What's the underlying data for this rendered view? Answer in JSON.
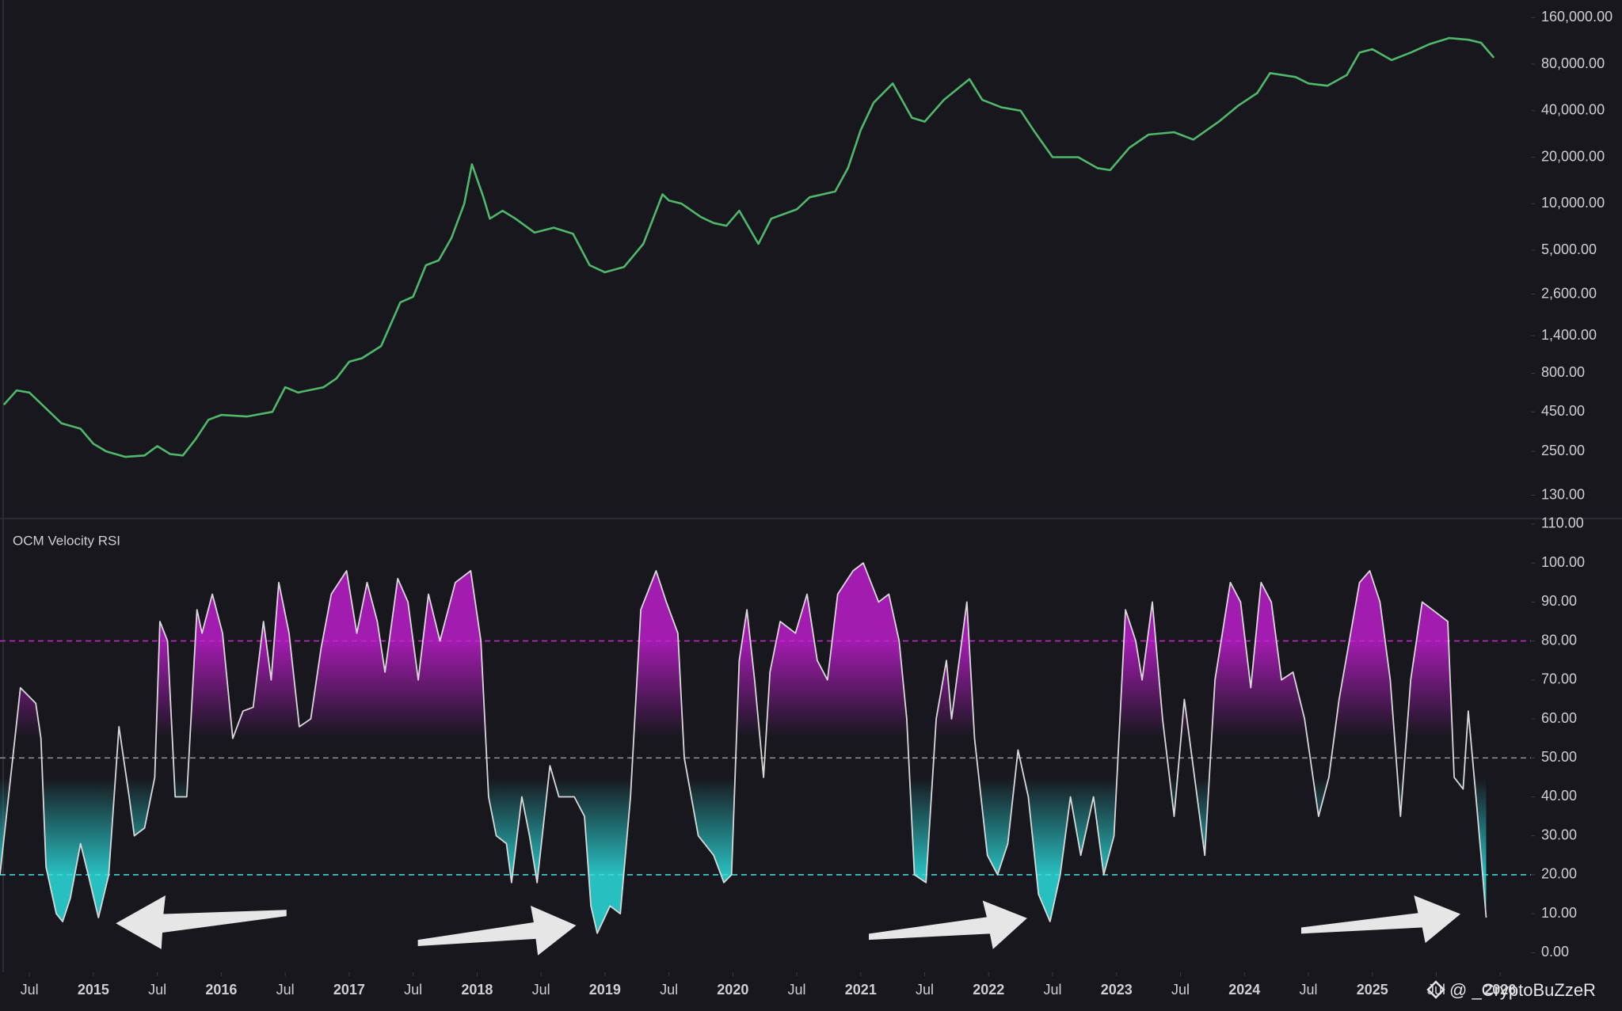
{
  "chart_data": [
    {
      "type": "line",
      "log_scale": true,
      "color": "#4fb86a",
      "xlim": [
        2014.27,
        2026.24
      ],
      "ylim": [
        94,
        208000
      ],
      "yticks": [
        {
          "value": 130,
          "label": "130.00"
        },
        {
          "value": 250,
          "label": "250.00"
        },
        {
          "value": 450,
          "label": "450.00"
        },
        {
          "value": 800,
          "label": "800.00"
        },
        {
          "value": 1400,
          "label": "1,400.00"
        },
        {
          "value": 2600,
          "label": "2,600.00"
        },
        {
          "value": 5000,
          "label": "5,000.00"
        },
        {
          "value": 10000,
          "label": "10,000.00"
        },
        {
          "value": 20000,
          "label": "20,000.00"
        },
        {
          "value": 40000,
          "label": "40,000.00"
        },
        {
          "value": 80000,
          "label": "80,000.00"
        },
        {
          "value": 160000,
          "label": "160,000.00"
        }
      ],
      "x": [
        2014.3,
        2014.4,
        2014.5,
        2014.6,
        2014.75,
        2014.9,
        2015.0,
        2015.1,
        2015.25,
        2015.4,
        2015.5,
        2015.6,
        2015.7,
        2015.8,
        2015.9,
        2016.0,
        2016.2,
        2016.4,
        2016.5,
        2016.6,
        2016.8,
        2016.9,
        2017.0,
        2017.1,
        2017.25,
        2017.4,
        2017.5,
        2017.6,
        2017.7,
        2017.8,
        2017.9,
        2017.96,
        2018.05,
        2018.1,
        2018.2,
        2018.3,
        2018.45,
        2018.6,
        2018.75,
        2018.88,
        2019.0,
        2019.15,
        2019.3,
        2019.45,
        2019.5,
        2019.6,
        2019.75,
        2019.85,
        2019.95,
        2020.05,
        2020.2,
        2020.3,
        2020.5,
        2020.6,
        2020.8,
        2020.9,
        2021.0,
        2021.1,
        2021.25,
        2021.4,
        2021.5,
        2021.65,
        2021.85,
        2021.95,
        2022.1,
        2022.25,
        2022.35,
        2022.5,
        2022.7,
        2022.85,
        2022.95,
        2023.1,
        2023.25,
        2023.45,
        2023.6,
        2023.8,
        2023.95,
        2024.1,
        2024.2,
        2024.4,
        2024.5,
        2024.65,
        2024.8,
        2024.9,
        2025.0,
        2025.15,
        2025.3,
        2025.45,
        2025.6,
        2025.75,
        2025.85,
        2025.95
      ],
      "values": [
        500,
        620,
        600,
        500,
        380,
        350,
        280,
        250,
        230,
        235,
        270,
        240,
        235,
        300,
        400,
        430,
        420,
        450,
        650,
        600,
        650,
        740,
        950,
        1000,
        1200,
        2300,
        2500,
        4000,
        4300,
        6000,
        10000,
        18000,
        11000,
        8000,
        9000,
        8000,
        6500,
        7000,
        6400,
        4000,
        3600,
        3900,
        5500,
        11500,
        10500,
        10000,
        8200,
        7500,
        7200,
        9000,
        5500,
        8000,
        9200,
        11000,
        12000,
        17000,
        30000,
        45000,
        60000,
        36000,
        34000,
        47000,
        64000,
        47000,
        42000,
        40000,
        30000,
        20000,
        20000,
        17000,
        16500,
        23000,
        28000,
        29000,
        26000,
        34000,
        43000,
        52000,
        70000,
        66000,
        60000,
        58000,
        68000,
        95000,
        100000,
        85000,
        95000,
        108000,
        118000,
        115000,
        110000,
        88000
      ]
    },
    {
      "type": "line",
      "title": "OCM Velocity RSI",
      "color": "#d9d9d9",
      "xlim": [
        2014.27,
        2026.24
      ],
      "ylim": [
        -5,
        111
      ],
      "yticks": [
        {
          "value": 0,
          "label": "0.00"
        },
        {
          "value": 10,
          "label": "10.00"
        },
        {
          "value": 20,
          "label": "20.00"
        },
        {
          "value": 30,
          "label": "30.00"
        },
        {
          "value": 40,
          "label": "40.00"
        },
        {
          "value": 50,
          "label": "50.00"
        },
        {
          "value": 60,
          "label": "60.00"
        },
        {
          "value": 70,
          "label": "70.00"
        },
        {
          "value": 80,
          "label": "80.00"
        },
        {
          "value": 90,
          "label": "90.00"
        },
        {
          "value": 100,
          "label": "100.00"
        },
        {
          "value": 110,
          "label": "110.00"
        }
      ],
      "xticks": [
        {
          "value": 2014.5,
          "label": "Jul"
        },
        2015,
        {
          "value": 2015.5,
          "label": "Jul"
        },
        2016,
        {
          "value": 2016.5,
          "label": "Jul"
        },
        2017,
        {
          "value": 2017.5,
          "label": "Jul"
        },
        2018,
        {
          "value": 2018.5,
          "label": "Jul"
        },
        2019,
        {
          "value": 2019.5,
          "label": "Jul"
        },
        2020,
        {
          "value": 2020.5,
          "label": "Jul"
        },
        2021,
        {
          "value": 2021.5,
          "label": "Jul"
        },
        2022,
        {
          "value": 2022.5,
          "label": "Jul"
        },
        2023,
        {
          "value": 2023.5,
          "label": "Jul"
        },
        2024,
        {
          "value": 2024.5,
          "label": "Jul"
        },
        2025,
        {
          "value": 2025.5,
          "label": "Jul"
        },
        2026
      ],
      "hlines": [
        {
          "value": 80,
          "color": "#c026c9"
        },
        {
          "value": 50,
          "color": "#8a8a8a"
        },
        {
          "value": 20,
          "color": "#3fd6d6"
        }
      ],
      "x": [
        2014.27,
        2014.43,
        2014.55,
        2014.59,
        2014.63,
        2014.71,
        2014.76,
        2014.82,
        2014.9,
        2014.96,
        2015.04,
        2015.12,
        2015.2,
        2015.28,
        2015.32,
        2015.4,
        2015.48,
        2015.52,
        2015.58,
        2015.64,
        2015.73,
        2015.81,
        2015.85,
        2015.93,
        2016.01,
        2016.09,
        2016.17,
        2016.25,
        2016.33,
        2016.39,
        2016.45,
        2016.53,
        2016.61,
        2016.7,
        2016.78,
        2016.86,
        2016.98,
        2017.06,
        2017.14,
        2017.22,
        2017.28,
        2017.38,
        2017.46,
        2017.54,
        2017.62,
        2017.71,
        2017.83,
        2017.95,
        2018.03,
        2018.09,
        2018.15,
        2018.23,
        2018.27,
        2018.35,
        2018.41,
        2018.47,
        2018.57,
        2018.64,
        2018.76,
        2018.84,
        2018.89,
        2018.94,
        2019.04,
        2019.12,
        2019.2,
        2019.28,
        2019.4,
        2019.48,
        2019.57,
        2019.62,
        2019.73,
        2019.85,
        2019.93,
        2019.99,
        2020.05,
        2020.11,
        2020.17,
        2020.24,
        2020.29,
        2020.37,
        2020.49,
        2020.58,
        2020.66,
        2020.74,
        2020.82,
        2020.94,
        2021.02,
        2021.14,
        2021.22,
        2021.3,
        2021.36,
        2021.42,
        2021.51,
        2021.59,
        2021.67,
        2021.71,
        2021.83,
        2021.89,
        2021.99,
        2022.07,
        2022.15,
        2022.23,
        2022.31,
        2022.39,
        2022.48,
        2022.56,
        2022.64,
        2022.72,
        2022.82,
        2022.9,
        2022.98,
        2023.07,
        2023.15,
        2023.2,
        2023.28,
        2023.36,
        2023.45,
        2023.53,
        2023.61,
        2023.69,
        2023.77,
        2023.89,
        2023.97,
        2024.05,
        2024.13,
        2024.21,
        2024.29,
        2024.38,
        2024.47,
        2024.58,
        2024.66,
        2024.74,
        2024.82,
        2024.9,
        2024.98,
        2025.06,
        2025.14,
        2025.22,
        2025.3,
        2025.39,
        2025.47,
        2025.59,
        2025.64,
        2025.71,
        2025.75,
        2025.81,
        2025.85,
        2025.89
      ],
      "values": [
        20,
        68,
        64,
        55,
        22,
        10,
        8,
        14,
        28,
        20,
        9,
        20,
        58,
        40,
        30,
        32,
        45,
        85,
        80,
        40,
        40,
        88,
        82,
        92,
        82,
        55,
        62,
        63,
        85,
        70,
        95,
        82,
        58,
        60,
        78,
        92,
        98,
        82,
        95,
        85,
        72,
        96,
        90,
        70,
        92,
        80,
        95,
        98,
        80,
        40,
        30,
        28,
        18,
        40,
        30,
        18,
        48,
        40,
        40,
        35,
        12,
        5,
        12,
        10,
        40,
        88,
        98,
        90,
        82,
        50,
        30,
        25,
        18,
        20,
        75,
        88,
        70,
        45,
        72,
        85,
        82,
        92,
        75,
        70,
        92,
        98,
        100,
        90,
        92,
        80,
        60,
        20,
        18,
        60,
        75,
        60,
        90,
        55,
        25,
        20,
        28,
        52,
        40,
        15,
        8,
        20,
        40,
        25,
        40,
        20,
        30,
        88,
        80,
        70,
        90,
        60,
        35,
        65,
        45,
        25,
        70,
        95,
        90,
        68,
        95,
        90,
        70,
        72,
        60,
        35,
        45,
        65,
        80,
        95,
        98,
        90,
        70,
        35,
        70,
        90,
        88,
        85,
        45,
        42,
        62,
        40,
        25,
        9
      ]
    }
  ],
  "watermark": "@ _CryptoBuZzeR"
}
